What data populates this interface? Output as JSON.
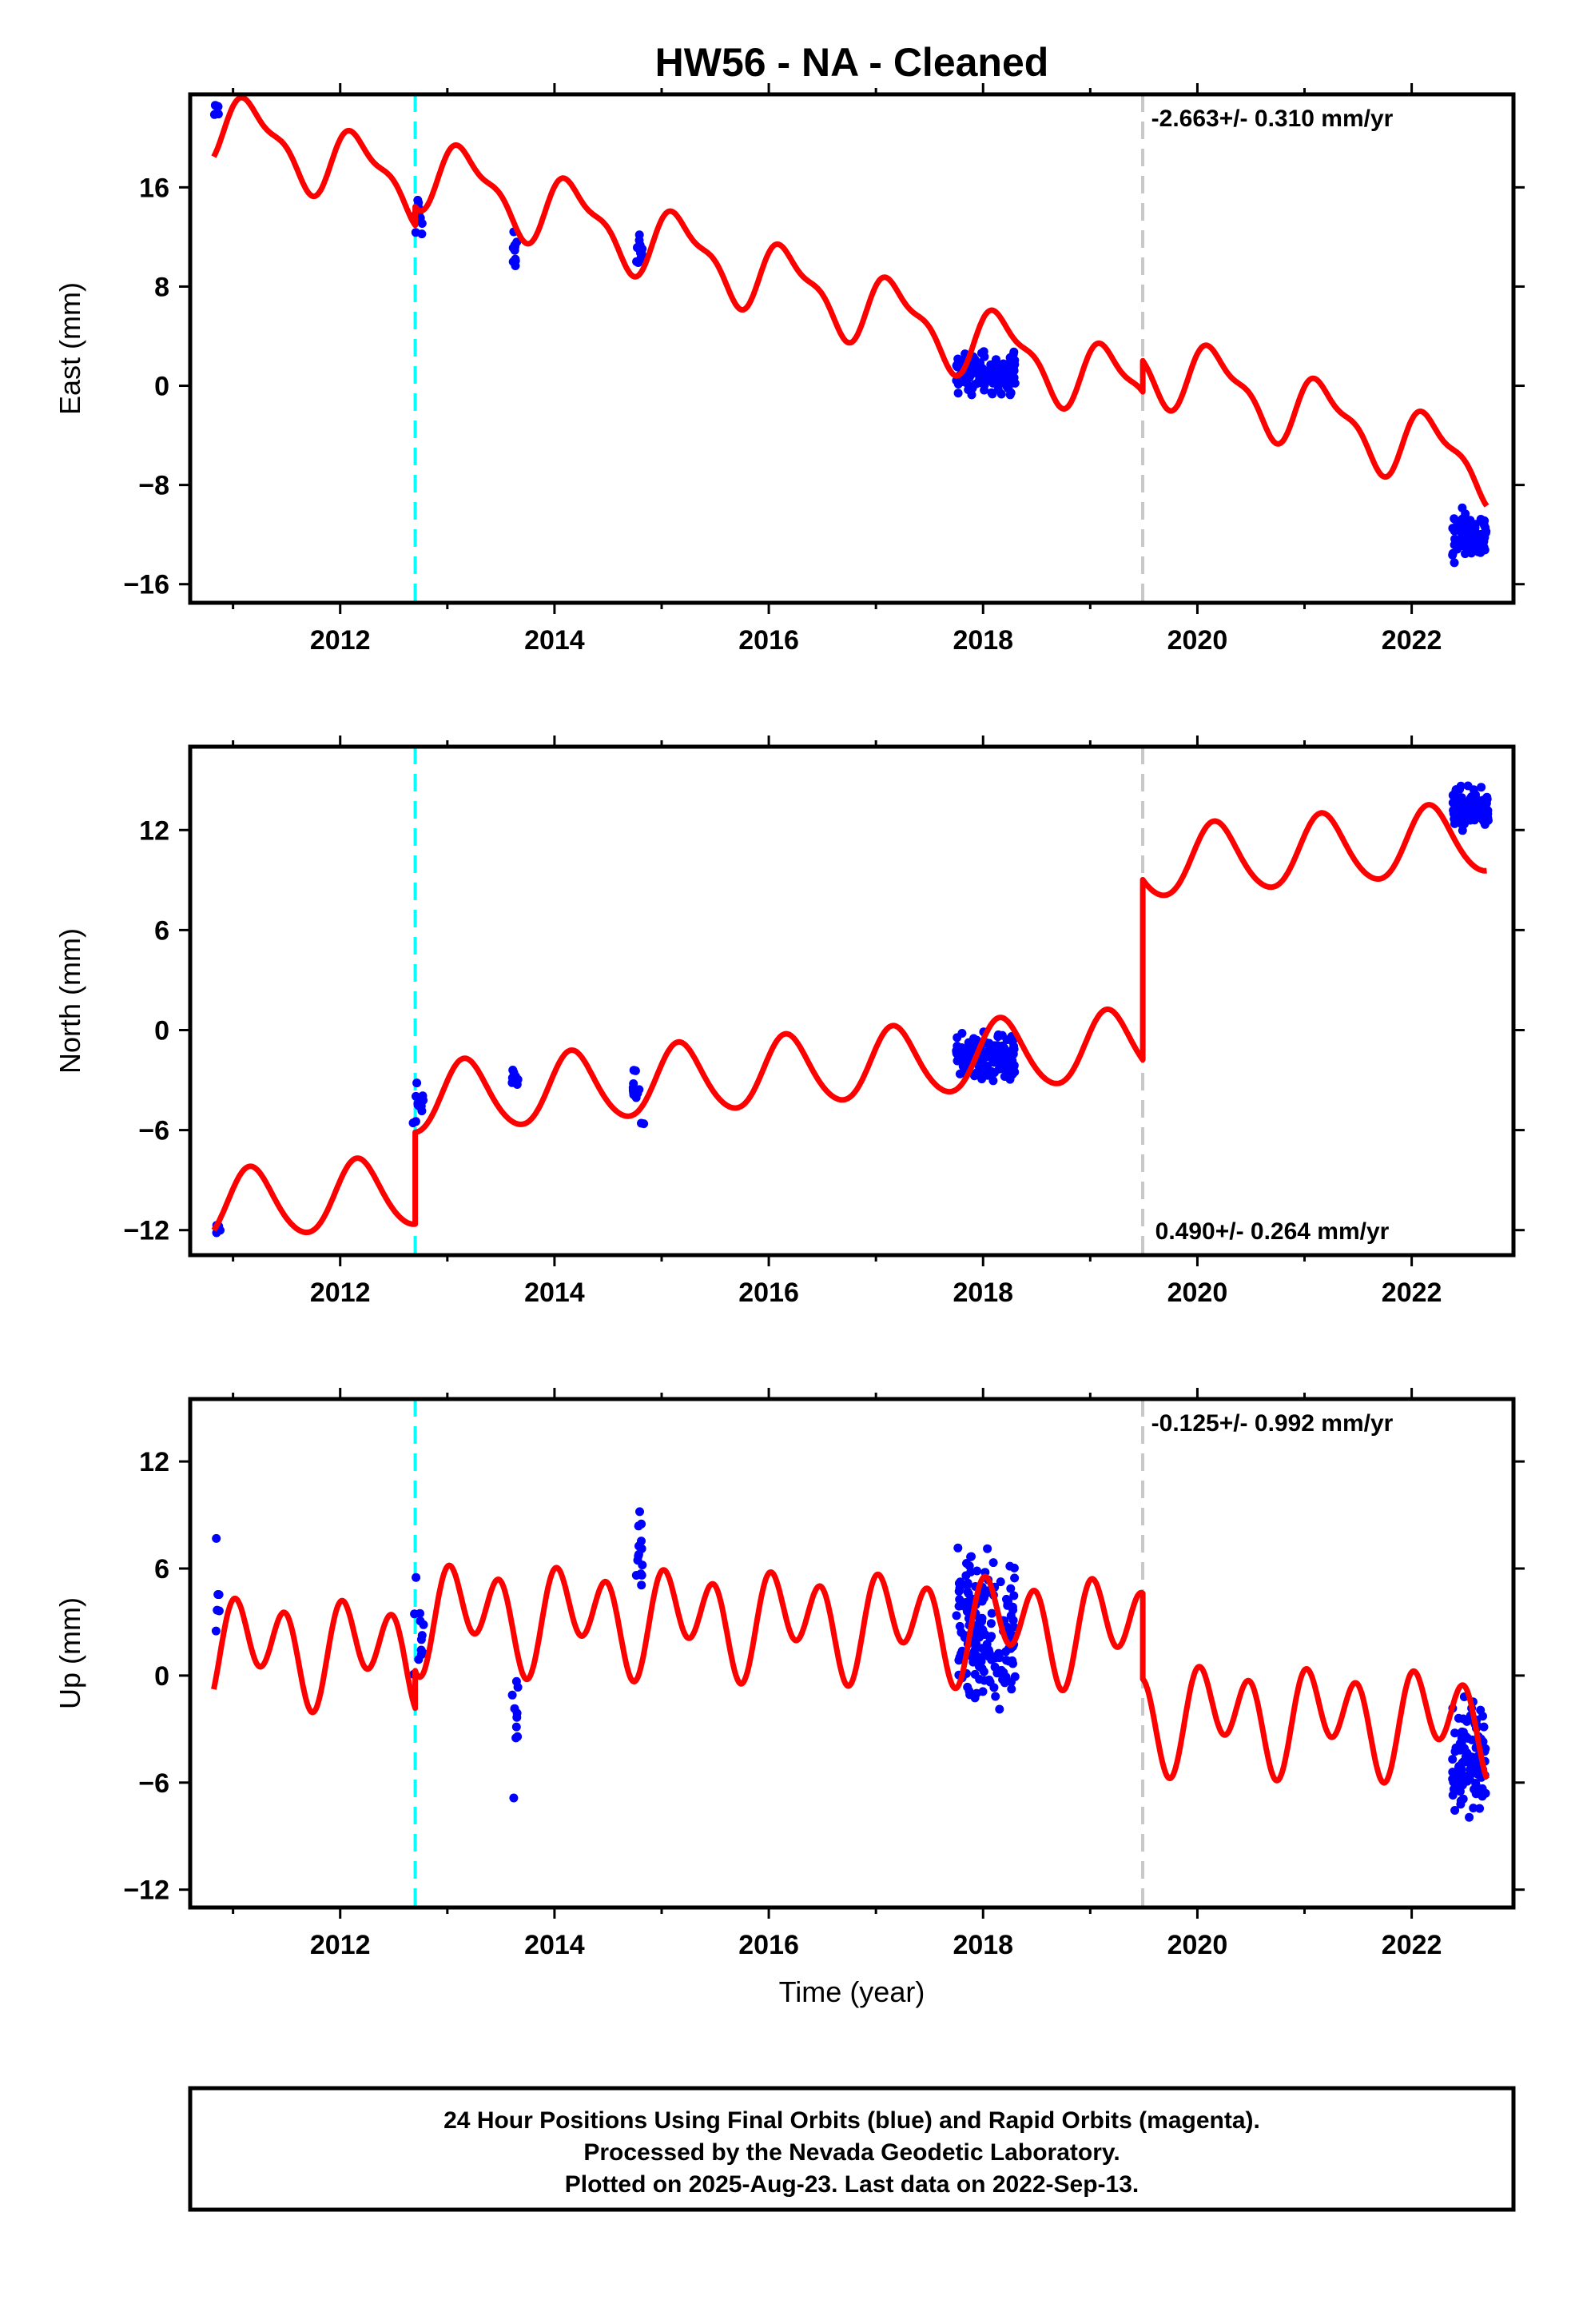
{
  "title": "HW56  - NA - Cleaned",
  "colors": {
    "data_points": "#0000ff",
    "model_curve": "#ff0000",
    "antenna_change_line": "#00ffff",
    "equipment_change_line": "#c8c8c8",
    "frame": "#000000"
  },
  "footer": {
    "line1": "24 Hour Positions Using Final Orbits (blue) and Rapid Orbits (magenta).",
    "line2": "Processed by the Nevada Geodetic Laboratory.",
    "line3": "Plotted on 2025-Aug-23. Last data on 2022-Sep-13."
  },
  "chart_data": [
    {
      "type": "scatter",
      "name": "east",
      "ylabel": "East (mm)",
      "xlabel": "",
      "rate_text": "-2.663+/- 0.310 mm/yr",
      "rate_position": "top-right",
      "xlim": [
        2010.6,
        2022.95
      ],
      "ylim": [
        -17.5,
        23.5
      ],
      "xticks": [
        2012,
        2014,
        2016,
        2018,
        2020,
        2022
      ],
      "xtick_labels": [
        "2012",
        "2014",
        "2016",
        "2018",
        "2020",
        "2022"
      ],
      "yticks": [
        -16,
        -8,
        0,
        8,
        16
      ],
      "ytick_labels": [
        "−16",
        "−8",
        "0",
        "8",
        "16"
      ],
      "vlines": [
        {
          "x": 2012.7,
          "style": "cyan-dashed"
        },
        {
          "x": 2019.49,
          "style": "gray-dashed"
        }
      ],
      "model": {
        "offset": 21.0,
        "t0": 2010.85,
        "rate": -2.663,
        "amp_annual": 2.6,
        "phase_annual": 0.4,
        "amp_semi": 1.0,
        "phase_semi": 1.2,
        "jumps": [
          {
            "t": 2012.7,
            "value": 1.5
          },
          {
            "t": 2019.49,
            "value": 2.5
          }
        ]
      },
      "clusters": [
        {
          "start": 2010.82,
          "end": 2010.88,
          "count": 6,
          "center": 22.0,
          "spread": 1.2
        },
        {
          "start": 2012.68,
          "end": 2012.78,
          "count": 10,
          "center": 14.0,
          "spread": 2.5
        },
        {
          "start": 2013.6,
          "end": 2013.66,
          "count": 10,
          "center": 10.5,
          "spread": 2.0
        },
        {
          "start": 2014.76,
          "end": 2014.82,
          "count": 12,
          "center": 11.0,
          "spread": 1.6
        },
        {
          "start": 2017.75,
          "end": 2018.3,
          "count": 150,
          "center": 1.0,
          "spread": 1.8
        },
        {
          "start": 2022.38,
          "end": 2022.7,
          "count": 90,
          "center": -12.0,
          "spread": 2.4
        }
      ]
    },
    {
      "type": "scatter",
      "name": "north",
      "ylabel": "North (mm)",
      "xlabel": "",
      "rate_text": "0.490+/- 0.264 mm/yr",
      "rate_position": "bottom-right",
      "xlim": [
        2010.6,
        2022.95
      ],
      "ylim": [
        -13.5,
        17.0
      ],
      "xticks": [
        2012,
        2014,
        2016,
        2018,
        2020,
        2022
      ],
      "xtick_labels": [
        "2012",
        "2014",
        "2016",
        "2018",
        "2020",
        "2022"
      ],
      "yticks": [
        -12,
        -6,
        0,
        6,
        12
      ],
      "ytick_labels": [
        "−12",
        "−6",
        "0",
        "6",
        "12"
      ],
      "vlines": [
        {
          "x": 2012.7,
          "style": "cyan-dashed"
        },
        {
          "x": 2019.49,
          "style": "gray-dashed"
        }
      ],
      "model": {
        "offset": -10.6,
        "t0": 2010.85,
        "rate": 0.49,
        "amp_annual": 2.1,
        "phase_annual": 0.5,
        "amp_semi": 0.2,
        "phase_semi": 0.0,
        "jumps": [
          {
            "t": 2012.7,
            "value": 5.5
          },
          {
            "t": 2019.49,
            "value": 10.8
          }
        ]
      },
      "clusters": [
        {
          "start": 2010.82,
          "end": 2010.88,
          "count": 5,
          "center": -12.0,
          "spread": 0.5
        },
        {
          "start": 2012.68,
          "end": 2012.78,
          "count": 12,
          "center": -4.5,
          "spread": 1.2
        },
        {
          "start": 2013.6,
          "end": 2013.66,
          "count": 10,
          "center": -2.8,
          "spread": 1.0
        },
        {
          "start": 2014.72,
          "end": 2014.84,
          "count": 12,
          "center": -3.7,
          "spread": 1.8
        },
        {
          "start": 2017.75,
          "end": 2018.3,
          "count": 160,
          "center": -1.6,
          "spread": 1.6
        },
        {
          "start": 2022.38,
          "end": 2022.72,
          "count": 100,
          "center": 13.2,
          "spread": 1.4
        }
      ]
    },
    {
      "type": "scatter",
      "name": "up",
      "ylabel": "Up (mm)",
      "xlabel": "Time (year)",
      "rate_text": "-0.125+/- 0.992 mm/yr",
      "rate_position": "top-right",
      "xlim": [
        2010.6,
        2022.95
      ],
      "ylim": [
        -13.0,
        15.5
      ],
      "xticks": [
        2012,
        2014,
        2016,
        2018,
        2020,
        2022
      ],
      "xtick_labels": [
        "2012",
        "2014",
        "2016",
        "2018",
        "2020",
        "2022"
      ],
      "yticks": [
        -12,
        -6,
        0,
        6,
        12
      ],
      "ytick_labels": [
        "−12",
        "−6",
        "0",
        "6",
        "12"
      ],
      "vlines": [
        {
          "x": 2012.7,
          "style": "cyan-dashed"
        },
        {
          "x": 2019.49,
          "style": "gray-dashed"
        }
      ],
      "model": {
        "offset": 1.6,
        "t0": 2010.85,
        "rate": -0.125,
        "amp_annual": 1.3,
        "phase_annual": 0.3,
        "amp_semi": 2.3,
        "phase_semi": 1.6,
        "jumps": [
          {
            "t": 2012.7,
            "value": 2.1
          },
          {
            "t": 2019.49,
            "value": -4.8
          }
        ]
      },
      "clusters": [
        {
          "start": 2010.82,
          "end": 2010.88,
          "count": 6,
          "center": 3.5,
          "spread": 4.0
        },
        {
          "start": 2012.68,
          "end": 2012.78,
          "count": 12,
          "center": 3.0,
          "spread": 4.5
        },
        {
          "start": 2013.6,
          "end": 2013.66,
          "count": 10,
          "center": -2.5,
          "spread": 5.5
        },
        {
          "start": 2014.76,
          "end": 2014.82,
          "count": 14,
          "center": 8.0,
          "spread": 4.5
        },
        {
          "start": 2017.75,
          "end": 2018.3,
          "count": 170,
          "center": 2.5,
          "spread": 4.5
        },
        {
          "start": 2022.38,
          "end": 2022.7,
          "count": 110,
          "center": -4.5,
          "spread": 3.5
        }
      ]
    }
  ]
}
